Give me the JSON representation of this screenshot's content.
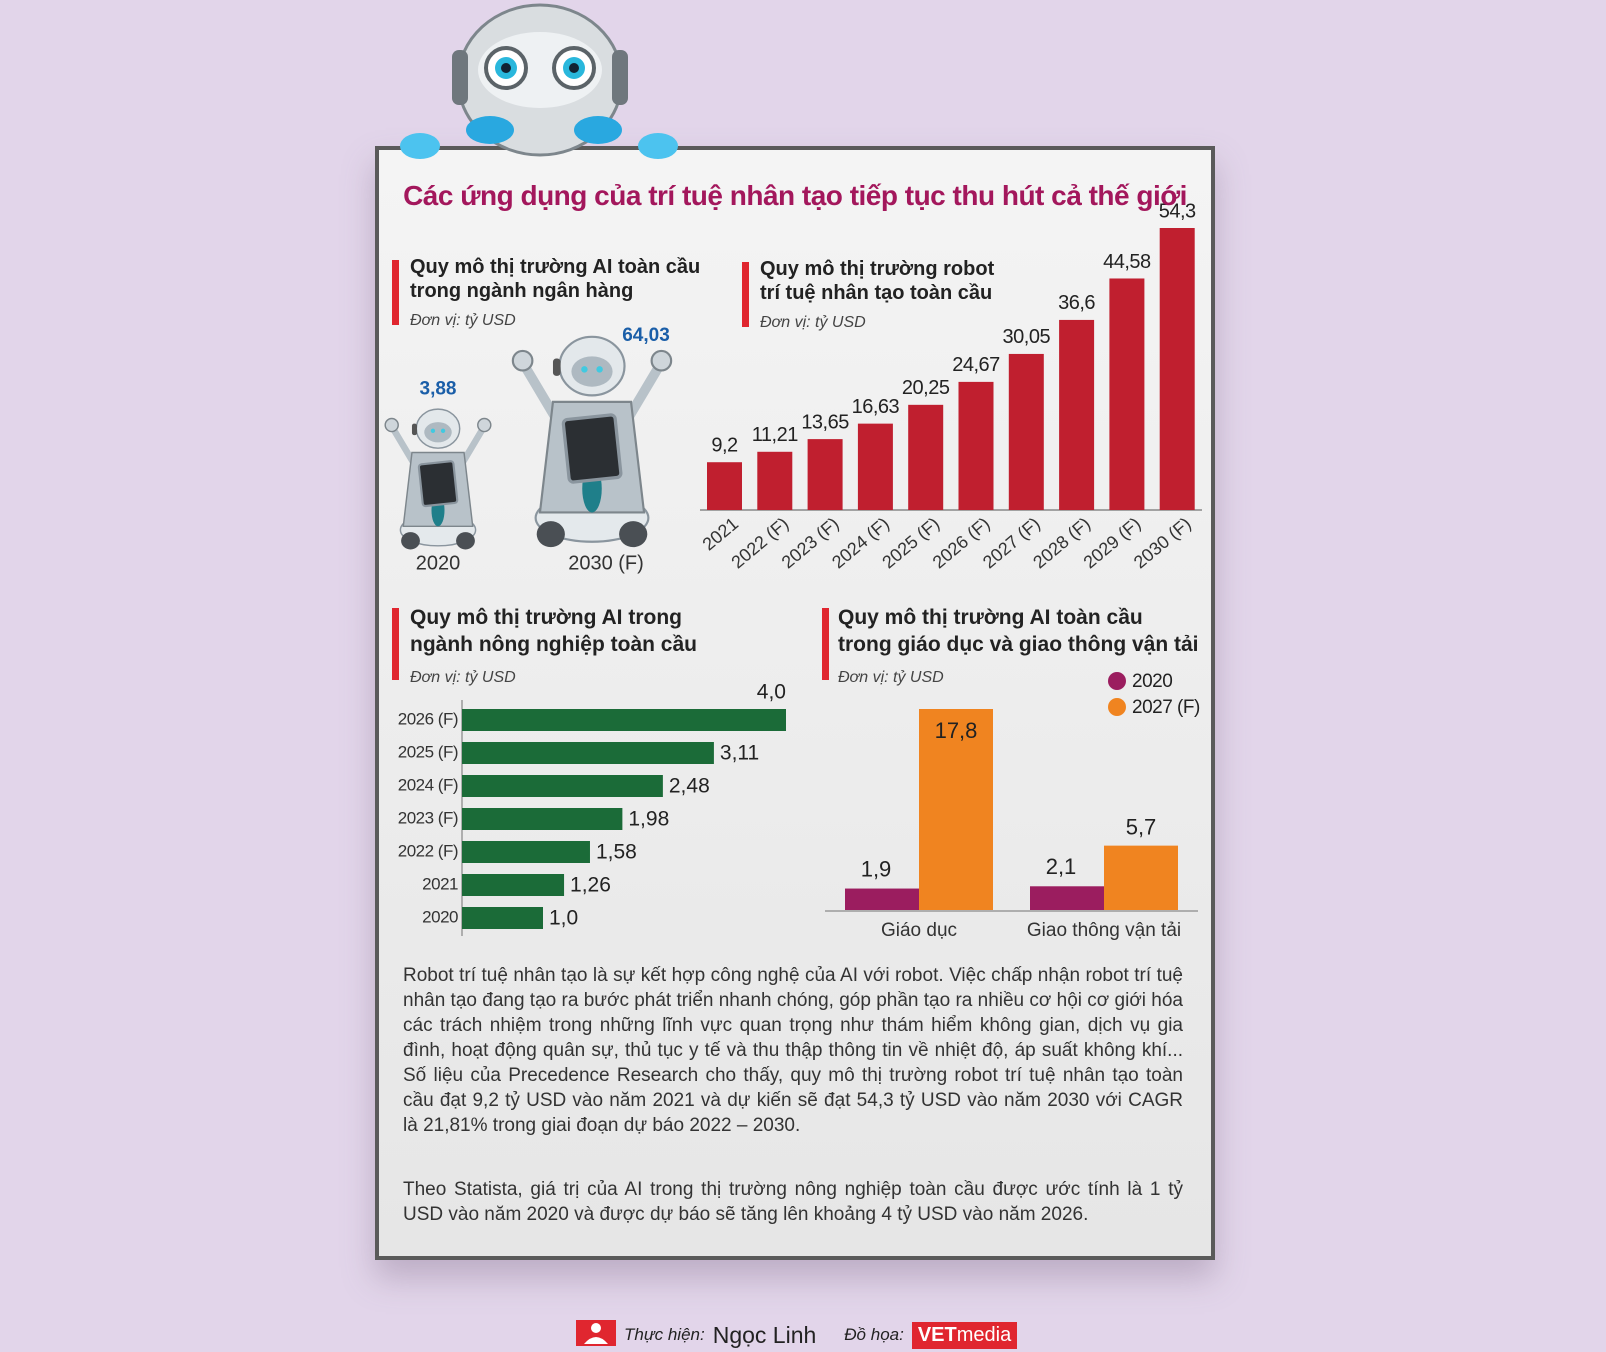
{
  "title": "Các ứng dụng của trí tuệ nhân tạo tiếp tục thu hút cả thế giới",
  "chart_data": [
    {
      "type": "pictograph",
      "title": [
        "Quy mô thị trường AI toàn cầu",
        "trong ngành ngân hàng"
      ],
      "unit": "Đơn vị: tỷ USD",
      "categories": [
        "2020",
        "2030 (F)"
      ],
      "values": [
        3.88,
        64.03
      ],
      "value_labels": [
        "3,88",
        "64,03"
      ],
      "color": "#1a5ea8"
    },
    {
      "type": "bar",
      "title": [
        "Quy mô thị trường robot",
        "trí tuệ nhân tạo toàn cầu"
      ],
      "unit": "Đơn vị: tỷ USD",
      "categories": [
        "2021",
        "2022 (F)",
        "2023 (F)",
        "2024 (F)",
        "2025 (F)",
        "2026 (F)",
        "2027 (F)",
        "2028 (F)",
        "2029 (F)",
        "2030 (F)"
      ],
      "values": [
        9.2,
        11.21,
        13.65,
        16.63,
        20.25,
        24.67,
        30.05,
        36.6,
        44.58,
        54.3
      ],
      "value_labels": [
        "9,2",
        "11,21",
        "13,65",
        "16,63",
        "20,25",
        "24,67",
        "30,05",
        "36,6",
        "44,58",
        "54,3"
      ],
      "color": "#c01f2f"
    },
    {
      "type": "hbar",
      "title": [
        "Quy mô thị trường AI trong",
        "ngành nông nghiệp toàn cầu"
      ],
      "unit": "Đơn vị: tỷ USD",
      "categories": [
        "2026 (F)",
        "2025 (F)",
        "2024 (F)",
        "2023 (F)",
        "2022 (F)",
        "2021",
        "2020"
      ],
      "values": [
        4.0,
        3.11,
        2.48,
        1.98,
        1.58,
        1.26,
        1.0
      ],
      "value_labels": [
        "4,0",
        "3,11",
        "2,48",
        "1,98",
        "1,58",
        "1,26",
        "1,0"
      ],
      "color": "#1b6b38"
    },
    {
      "type": "grouped_bar",
      "title": [
        "Quy mô thị trường AI toàn cầu",
        "trong giáo dục và giao thông vận tải"
      ],
      "unit": "Đơn vị: tỷ USD",
      "categories": [
        "Giáo dục",
        "Giao thông vận tải"
      ],
      "series": [
        {
          "name": "2020",
          "color": "#9b1d5f",
          "values": [
            1.9,
            2.1
          ],
          "value_labels": [
            "1,9",
            "2,1"
          ]
        },
        {
          "name": "2027 (F)",
          "color": "#f08420",
          "values": [
            17.8,
            5.7
          ],
          "value_labels": [
            "17,8",
            "5,7"
          ]
        }
      ],
      "legend": "top-right"
    }
  ],
  "paragraphs": [
    "Robot trí tuệ nhân tạo là sự kết hợp công nghệ của AI với robot. Việc chấp nhận robot trí tuệ nhân tạo đang tạo ra bước phát triển nhanh chóng, góp phần tạo ra nhiều cơ hội cơ giới hóa các trách nhiệm trong những lĩnh vực quan trọng như thám hiểm không gian, dịch vụ gia đình, hoạt động quân sự, thủ tục y tế và thu thập thông tin về nhiệt độ, áp suất không khí... Số liệu của Precedence Research cho thấy, quy mô thị trường robot trí tuệ nhân tạo toàn cầu đạt 9,2 tỷ USD vào năm 2021 và dự kiến sẽ đạt 54,3 tỷ USD vào năm 2030 với CAGR là 21,81% trong giai đoạn dự báo 2022 – 2030.",
    "Theo Statista, giá trị của AI trong thị trường nông nghiệp toàn cầu được ước tính là 1 tỷ USD vào năm 2020 và được dự báo sẽ tăng lên khoảng 4 tỷ USD vào năm 2026."
  ],
  "credits": {
    "author_label": "Thực hiện:",
    "author": "Ngọc Linh",
    "graphics_label": "Đồ họa:",
    "logo_bold": "VET",
    "logo_light": "media"
  }
}
